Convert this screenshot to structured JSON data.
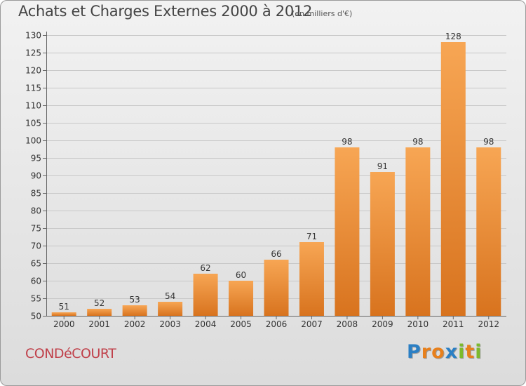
{
  "header": {
    "title": "Achats et Charges Externes 2000 à 2012",
    "subtitle": "(en milliers d'€)"
  },
  "footer": {
    "town": "CONDéCOURT",
    "brand": "Proxiti",
    "brand_letters": [
      {
        "ch": "P",
        "color": "#2b7fc4"
      },
      {
        "ch": "r",
        "color": "#e8801c"
      },
      {
        "ch": "o",
        "color": "#e8801c"
      },
      {
        "ch": "x",
        "color": "#2b7fc4"
      },
      {
        "ch": "i",
        "color": "#7cba2c"
      },
      {
        "ch": "t",
        "color": "#e8801c"
      },
      {
        "ch": "i",
        "color": "#7cba2c"
      }
    ]
  },
  "chart_data": {
    "type": "bar",
    "title": "Achats et Charges Externes 2000 à 2012",
    "subtitle": "(en milliers d'€)",
    "categories": [
      "2000",
      "2001",
      "2002",
      "2003",
      "2004",
      "2005",
      "2006",
      "2007",
      "2008",
      "2009",
      "2010",
      "2011",
      "2012"
    ],
    "values": [
      51,
      52,
      53,
      54,
      62,
      60,
      66,
      71,
      98,
      91,
      98,
      128,
      98
    ],
    "ylim": [
      50,
      130
    ],
    "yticks": [
      50,
      55,
      60,
      65,
      70,
      75,
      80,
      85,
      90,
      95,
      100,
      105,
      110,
      115,
      120,
      125,
      130
    ],
    "grid": true,
    "colors": {
      "bar_light": "#f7a654",
      "bar_dark": "#d8731e",
      "grid": "#c8c8c8",
      "axis": "#666666"
    }
  }
}
